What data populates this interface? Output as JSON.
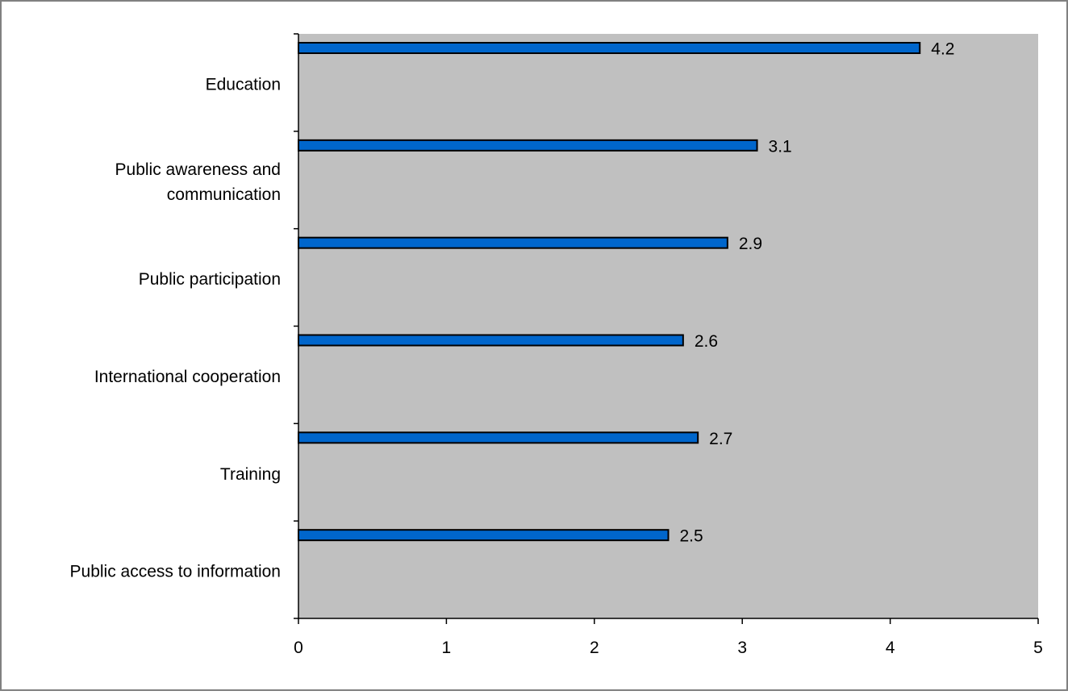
{
  "chart_data": {
    "type": "bar",
    "orientation": "horizontal",
    "categories": [
      [
        "Education"
      ],
      [
        "Public awareness and",
        "communication"
      ],
      [
        "Public participation"
      ],
      [
        "International cooperation"
      ],
      [
        "Training"
      ],
      [
        "Public access to information"
      ]
    ],
    "values": [
      4.2,
      3.1,
      2.9,
      2.6,
      2.7,
      2.5
    ],
    "data_labels": [
      "4.2",
      "3.1",
      "2.9",
      "2.6",
      "2.7",
      "2.5"
    ],
    "xticks": [
      "0",
      "1",
      "2",
      "3",
      "4",
      "5"
    ],
    "xlim": [
      0,
      5
    ],
    "title": "",
    "xlabel": "",
    "ylabel": "",
    "grid": false,
    "legend": "none",
    "colors": {
      "bar_fill": "#0066CC",
      "bar_stroke": "#000000",
      "plot_background": "#C0C0C0",
      "frame": "#808080"
    }
  }
}
